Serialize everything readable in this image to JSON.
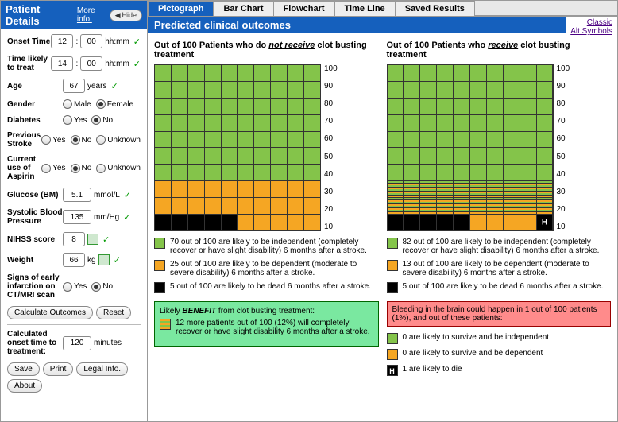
{
  "sidebar": {
    "title": "Patient Details",
    "more_info": "More info.",
    "hide": "Hide",
    "fields": {
      "onset_time": {
        "label": "Onset Time",
        "hh": "12",
        "mm": "00",
        "unit": "hh:mm"
      },
      "time_treat": {
        "label": "Time likely to treat",
        "hh": "14",
        "mm": "00",
        "unit": "hh:mm"
      },
      "age": {
        "label": "Age",
        "val": "67",
        "unit": "years"
      },
      "gender": {
        "label": "Gender",
        "opts": [
          "Male",
          "Female"
        ],
        "sel": 1
      },
      "diabetes": {
        "label": "Diabetes",
        "opts": [
          "Yes",
          "No"
        ],
        "sel": 1
      },
      "prev_stroke": {
        "label": "Previous Stroke",
        "opts": [
          "Yes",
          "No",
          "Unknown"
        ],
        "sel": 1
      },
      "aspirin": {
        "label": "Current use of Aspirin",
        "opts": [
          "Yes",
          "No",
          "Unknown"
        ],
        "sel": 1
      },
      "glucose": {
        "label": "Glucose (BM)",
        "val": "5.1",
        "unit": "mmol/L"
      },
      "bp": {
        "label": "Systolic Blood Pressure",
        "val": "135",
        "unit": "mm/Hg"
      },
      "nihss": {
        "label": "NIHSS score",
        "val": "8"
      },
      "weight": {
        "label": "Weight",
        "val": "66",
        "unit": "kg"
      },
      "ctmri": {
        "label": "Signs of early infarction on CT/MRI scan",
        "opts": [
          "Yes",
          "No"
        ],
        "sel": 1
      }
    },
    "buttons": {
      "calc": "Calculate Outcomes",
      "reset": "Reset",
      "save": "Save",
      "print": "Print",
      "legal": "Legal Info.",
      "about": "About"
    },
    "calc_onset": {
      "label": "Calculated onset time to treatment:",
      "val": "120",
      "unit": "minutes"
    }
  },
  "tabs": [
    "Pictograph",
    "Bar Chart",
    "Flowchart",
    "Time Line",
    "Saved Results"
  ],
  "active_tab": 0,
  "header": "Predicted clinical outcomes",
  "links": [
    "Classic",
    "Alt Symbols"
  ],
  "left_chart": {
    "title_pre": "Out of 100 Patients who do ",
    "title_ui": "not receive",
    "title_post": " clot busting treatment",
    "green": 70,
    "orange": 25,
    "black": 5,
    "legend": [
      {
        "type": "green",
        "text": "70 out of 100 are likely to be independent (completely recover or have slight disability) 6 months after a stroke."
      },
      {
        "type": "orange",
        "text": "25 out of 100 are likely to be dependent (moderate to severe disability) 6 months after a stroke."
      },
      {
        "type": "black",
        "text": "5 out of 100 are likely to be dead 6 months after a stroke."
      }
    ],
    "benefit_title": "Likely BENEFIT from clot busting treatment:",
    "benefit_text": "12 more patients out of 100 (12%) will completely recover or have slight disability 6 months after a stroke."
  },
  "right_chart": {
    "title_pre": "Out of 100 Patients who ",
    "title_ui": "receive",
    "title_post": " clot busting treatment",
    "green": 82,
    "orange": 13,
    "black": 5,
    "striped_rows": [
      7,
      8
    ],
    "h_cell": 99,
    "legend": [
      {
        "type": "green",
        "text": "82 out of 100 are likely to be independent (completely recover or have slight disability) 6 months after a stroke."
      },
      {
        "type": "orange",
        "text": "13 out of 100 are likely to be dependent (moderate to severe disability) 6 months after a stroke."
      },
      {
        "type": "black",
        "text": "5 out of 100 are likely to be dead 6 months after a stroke."
      }
    ],
    "risk_title": "Bleeding in the brain could happen in 1 out of 100 patients (1%), and out of these patients:",
    "risk_items": [
      {
        "type": "green",
        "text": "0 are likely to survive and be independent"
      },
      {
        "type": "orange",
        "text": "0 are likely to survive and be dependent"
      },
      {
        "type": "hmark",
        "text": "1 are likely to die"
      }
    ]
  },
  "y_ticks": [
    100,
    90,
    80,
    70,
    60,
    50,
    40,
    30,
    20,
    10
  ],
  "colors": {
    "green": "#84c44a",
    "orange": "#f5a623",
    "black": "#000000",
    "blue": "#1560bd",
    "benefit_bg": "#7ae8a0",
    "risk_bg": "#ff8b8b"
  }
}
